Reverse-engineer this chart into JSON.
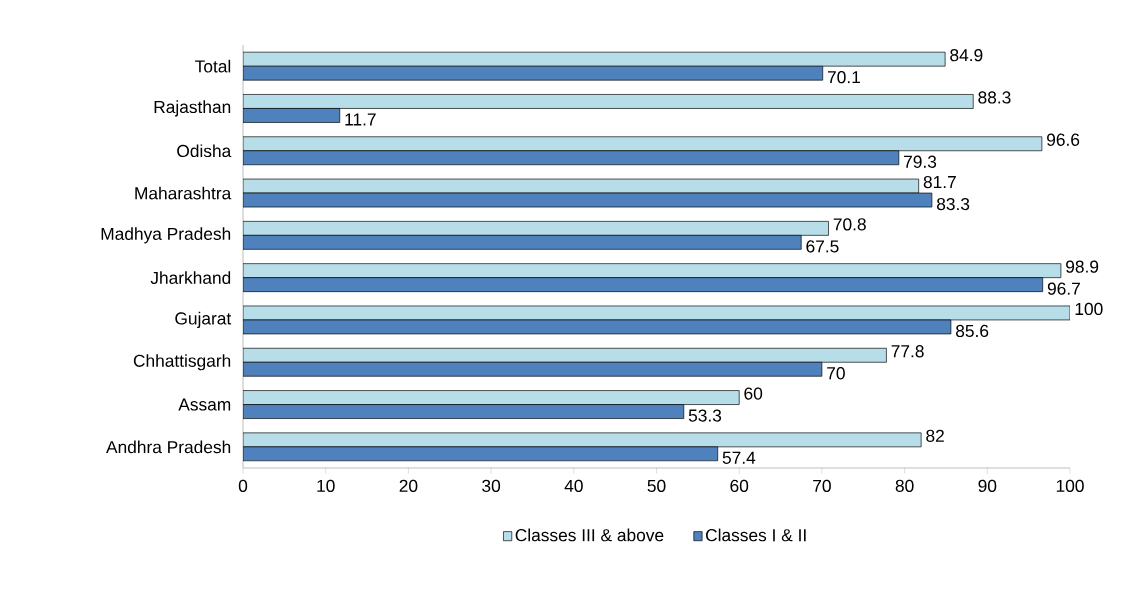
{
  "chart_data": {
    "type": "bar",
    "orientation": "horizontal",
    "categories": [
      "Total",
      "Rajasthan",
      "Odisha",
      "Maharashtra",
      "Madhya Pradesh",
      "Jharkhand",
      "Gujarat",
      "Chhattisgarh",
      "Assam",
      "Andhra Pradesh"
    ],
    "series": [
      {
        "name": "Classes III & above",
        "color": "#b7dde8",
        "values": [
          84.9,
          88.3,
          96.6,
          81.7,
          70.8,
          98.9,
          100,
          77.8,
          60,
          82
        ]
      },
      {
        "name": "Classes I & II",
        "color": "#4f81bd",
        "values": [
          70.1,
          11.7,
          79.3,
          83.3,
          67.5,
          96.7,
          85.6,
          70,
          53.3,
          57.4
        ]
      }
    ],
    "xlim": [
      0,
      100
    ],
    "xticks": [
      0,
      10,
      20,
      30,
      40,
      50,
      60,
      70,
      80,
      90,
      100
    ],
    "data_labels": true,
    "grid": false,
    "legend": "bottom"
  }
}
